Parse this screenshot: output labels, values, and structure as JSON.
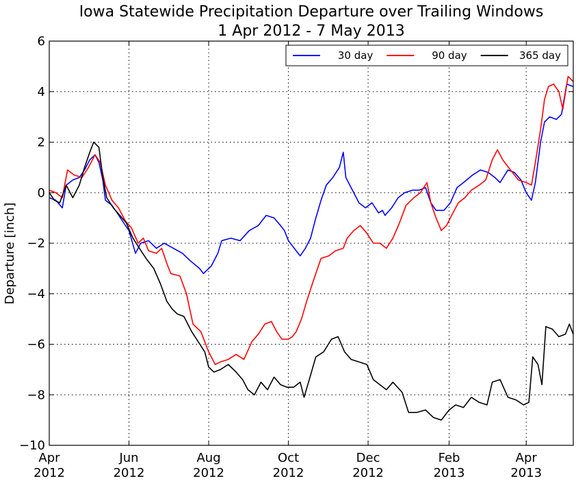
{
  "chart_data": {
    "type": "line",
    "title": "Iowa Statewide Precipitation Departure over Trailing Windows",
    "subtitle": "1 Apr 2012 - 7 May 2013",
    "xlabel": "",
    "ylabel": "Departure [inch]",
    "xlim": [
      "2012-04-01",
      "2013-05-07"
    ],
    "ylim": [
      -10,
      6
    ],
    "yticks": [
      6,
      4,
      2,
      0,
      -2,
      -4,
      -6,
      -8,
      -10
    ],
    "ytick_labels": [
      "6",
      "4",
      "2",
      "0",
      "−2",
      "−4",
      "−6",
      "−8",
      "−10"
    ],
    "xticks": [
      {
        "date": "2012-04-01",
        "line1": "Apr",
        "line2": "2012"
      },
      {
        "date": "2012-06-01",
        "line1": "Jun",
        "line2": "2012"
      },
      {
        "date": "2012-08-01",
        "line1": "Aug",
        "line2": "2012"
      },
      {
        "date": "2012-10-01",
        "line1": "Oct",
        "line2": "2012"
      },
      {
        "date": "2012-12-01",
        "line1": "Dec",
        "line2": "2012"
      },
      {
        "date": "2013-02-01",
        "line1": "Feb",
        "line2": "2013"
      },
      {
        "date": "2013-04-01",
        "line1": "Apr",
        "line2": "2013"
      }
    ],
    "grid": true,
    "legend_position": "top-right",
    "series": [
      {
        "name": "30 day",
        "color": "#0000ff",
        "points": [
          [
            "2012-04-01",
            -0.2
          ],
          [
            "2012-04-06",
            -0.3
          ],
          [
            "2012-04-11",
            -0.6
          ],
          [
            "2012-04-14",
            0.3
          ],
          [
            "2012-04-19",
            0.5
          ],
          [
            "2012-04-24",
            0.6
          ],
          [
            "2012-04-28",
            0.9
          ],
          [
            "2012-05-02",
            1.3
          ],
          [
            "2012-05-06",
            1.5
          ],
          [
            "2012-05-09",
            1.2
          ],
          [
            "2012-05-12",
            0.5
          ],
          [
            "2012-05-14",
            -0.3
          ],
          [
            "2012-05-19",
            -0.5
          ],
          [
            "2012-05-23",
            -0.8
          ],
          [
            "2012-05-28",
            -1.2
          ],
          [
            "2012-06-01",
            -1.5
          ],
          [
            "2012-06-06",
            -2.4
          ],
          [
            "2012-06-10",
            -2.0
          ],
          [
            "2012-06-16",
            -1.9
          ],
          [
            "2012-06-22",
            -2.2
          ],
          [
            "2012-06-28",
            -2.0
          ],
          [
            "2012-07-05",
            -2.2
          ],
          [
            "2012-07-12",
            -2.4
          ],
          [
            "2012-07-18",
            -2.7
          ],
          [
            "2012-07-25",
            -3.0
          ],
          [
            "2012-07-28",
            -3.2
          ],
          [
            "2012-08-03",
            -2.9
          ],
          [
            "2012-08-08",
            -2.4
          ],
          [
            "2012-08-11",
            -1.9
          ],
          [
            "2012-08-18",
            -1.8
          ],
          [
            "2012-08-25",
            -1.9
          ],
          [
            "2012-09-01",
            -1.5
          ],
          [
            "2012-09-08",
            -1.3
          ],
          [
            "2012-09-14",
            -0.9
          ],
          [
            "2012-09-20",
            -1.0
          ],
          [
            "2012-09-25",
            -1.3
          ],
          [
            "2012-09-28",
            -1.5
          ],
          [
            "2012-10-01",
            -1.9
          ],
          [
            "2012-10-07",
            -2.3
          ],
          [
            "2012-10-10",
            -2.5
          ],
          [
            "2012-10-14",
            -2.2
          ],
          [
            "2012-10-18",
            -1.8
          ],
          [
            "2012-10-22",
            -1.0
          ],
          [
            "2012-10-26",
            -0.3
          ],
          [
            "2012-10-30",
            0.3
          ],
          [
            "2012-11-04",
            0.6
          ],
          [
            "2012-11-09",
            1.0
          ],
          [
            "2012-11-12",
            1.6
          ],
          [
            "2012-11-14",
            0.6
          ],
          [
            "2012-11-19",
            0.1
          ],
          [
            "2012-11-24",
            -0.4
          ],
          [
            "2012-11-29",
            -0.6
          ],
          [
            "2012-12-04",
            -0.4
          ],
          [
            "2012-12-09",
            -0.8
          ],
          [
            "2012-12-12",
            -0.7
          ],
          [
            "2012-12-14",
            -0.9
          ],
          [
            "2012-12-19",
            -0.6
          ],
          [
            "2012-12-24",
            -0.2
          ],
          [
            "2012-12-29",
            0.0
          ],
          [
            "2013-01-04",
            0.1
          ],
          [
            "2013-01-09",
            0.1
          ],
          [
            "2013-01-14",
            0.2
          ],
          [
            "2013-01-18",
            -0.4
          ],
          [
            "2013-01-22",
            -0.7
          ],
          [
            "2013-01-28",
            -0.7
          ],
          [
            "2013-02-02",
            -0.4
          ],
          [
            "2013-02-07",
            0.2
          ],
          [
            "2013-02-12",
            0.4
          ],
          [
            "2013-02-19",
            0.7
          ],
          [
            "2013-02-25",
            0.9
          ],
          [
            "2013-03-03",
            0.8
          ],
          [
            "2013-03-08",
            0.6
          ],
          [
            "2013-03-12",
            0.4
          ],
          [
            "2013-03-18",
            0.9
          ],
          [
            "2013-03-23",
            0.8
          ],
          [
            "2013-03-28",
            0.5
          ],
          [
            "2013-04-01",
            0.0
          ],
          [
            "2013-04-05",
            -0.3
          ],
          [
            "2013-04-08",
            0.4
          ],
          [
            "2013-04-12",
            2.0
          ],
          [
            "2013-04-15",
            2.8
          ],
          [
            "2013-04-19",
            3.0
          ],
          [
            "2013-04-24",
            2.9
          ],
          [
            "2013-04-28",
            3.1
          ],
          [
            "2013-05-02",
            4.3
          ],
          [
            "2013-05-07",
            4.2
          ]
        ]
      },
      {
        "name": "90 day",
        "color": "#ff0000",
        "points": [
          [
            "2012-04-01",
            0.1
          ],
          [
            "2012-04-06",
            0.0
          ],
          [
            "2012-04-11",
            -0.2
          ],
          [
            "2012-04-15",
            0.9
          ],
          [
            "2012-04-20",
            0.7
          ],
          [
            "2012-04-26",
            0.6
          ],
          [
            "2012-05-01",
            1.0
          ],
          [
            "2012-05-06",
            1.5
          ],
          [
            "2012-05-10",
            1.2
          ],
          [
            "2012-05-14",
            0.3
          ],
          [
            "2012-05-19",
            -0.3
          ],
          [
            "2012-05-24",
            -0.6
          ],
          [
            "2012-05-29",
            -1.1
          ],
          [
            "2012-06-03",
            -1.4
          ],
          [
            "2012-06-08",
            -2.0
          ],
          [
            "2012-06-12",
            -1.8
          ],
          [
            "2012-06-16",
            -2.3
          ],
          [
            "2012-06-22",
            -2.4
          ],
          [
            "2012-06-26",
            -2.2
          ],
          [
            "2012-06-30",
            -2.8
          ],
          [
            "2012-07-03",
            -3.2
          ],
          [
            "2012-07-10",
            -3.3
          ],
          [
            "2012-07-15",
            -4.0
          ],
          [
            "2012-07-20",
            -5.2
          ],
          [
            "2012-07-26",
            -5.5
          ],
          [
            "2012-08-01",
            -6.3
          ],
          [
            "2012-08-06",
            -6.8
          ],
          [
            "2012-08-10",
            -6.7
          ],
          [
            "2012-08-16",
            -6.6
          ],
          [
            "2012-08-22",
            -6.4
          ],
          [
            "2012-08-28",
            -6.6
          ],
          [
            "2012-09-03",
            -5.9
          ],
          [
            "2012-09-08",
            -5.6
          ],
          [
            "2012-09-13",
            -5.2
          ],
          [
            "2012-09-18",
            -5.1
          ],
          [
            "2012-09-22",
            -5.5
          ],
          [
            "2012-09-26",
            -5.8
          ],
          [
            "2012-10-01",
            -5.8
          ],
          [
            "2012-10-04",
            -5.7
          ],
          [
            "2012-10-07",
            -5.5
          ],
          [
            "2012-10-11",
            -5.0
          ],
          [
            "2012-10-15",
            -4.3
          ],
          [
            "2012-10-20",
            -3.5
          ],
          [
            "2012-10-26",
            -2.6
          ],
          [
            "2012-11-01",
            -2.5
          ],
          [
            "2012-11-06",
            -2.3
          ],
          [
            "2012-11-12",
            -2.2
          ],
          [
            "2012-11-15",
            -1.8
          ],
          [
            "2012-11-20",
            -1.5
          ],
          [
            "2012-11-25",
            -1.3
          ],
          [
            "2012-11-30",
            -1.6
          ],
          [
            "2012-12-05",
            -2.0
          ],
          [
            "2012-12-10",
            -2.0
          ],
          [
            "2012-12-15",
            -2.2
          ],
          [
            "2012-12-20",
            -1.8
          ],
          [
            "2012-12-25",
            -1.2
          ],
          [
            "2012-12-30",
            -0.5
          ],
          [
            "2013-01-05",
            -0.2
          ],
          [
            "2013-01-10",
            0.0
          ],
          [
            "2013-01-15",
            0.4
          ],
          [
            "2013-01-18",
            -0.4
          ],
          [
            "2013-01-22",
            -1.0
          ],
          [
            "2013-01-26",
            -1.5
          ],
          [
            "2013-01-30",
            -1.3
          ],
          [
            "2013-02-03",
            -0.9
          ],
          [
            "2013-02-08",
            -0.4
          ],
          [
            "2013-02-13",
            -0.2
          ],
          [
            "2013-02-18",
            0.1
          ],
          [
            "2013-02-24",
            0.3
          ],
          [
            "2013-03-01",
            0.5
          ],
          [
            "2013-03-06",
            1.3
          ],
          [
            "2013-03-10",
            1.7
          ],
          [
            "2013-03-14",
            1.3
          ],
          [
            "2013-03-20",
            0.9
          ],
          [
            "2013-03-26",
            0.5
          ],
          [
            "2013-04-01",
            0.4
          ],
          [
            "2013-04-05",
            0.3
          ],
          [
            "2013-04-08",
            1.2
          ],
          [
            "2013-04-12",
            2.5
          ],
          [
            "2013-04-15",
            3.7
          ],
          [
            "2013-04-18",
            4.2
          ],
          [
            "2013-04-22",
            4.3
          ],
          [
            "2013-04-26",
            4.0
          ],
          [
            "2013-04-29",
            3.3
          ],
          [
            "2013-05-03",
            4.6
          ],
          [
            "2013-05-07",
            4.4
          ]
        ]
      },
      {
        "name": "365 day",
        "color": "#000000",
        "points": [
          [
            "2012-04-01",
            0.0
          ],
          [
            "2012-04-05",
            -0.3
          ],
          [
            "2012-04-09",
            -0.4
          ],
          [
            "2012-04-14",
            0.3
          ],
          [
            "2012-04-19",
            -0.2
          ],
          [
            "2012-04-24",
            0.3
          ],
          [
            "2012-04-28",
            1.0
          ],
          [
            "2012-05-02",
            1.6
          ],
          [
            "2012-05-05",
            2.0
          ],
          [
            "2012-05-09",
            1.8
          ],
          [
            "2012-05-12",
            0.6
          ],
          [
            "2012-05-15",
            -0.2
          ],
          [
            "2012-05-20",
            -0.6
          ],
          [
            "2012-05-25",
            -0.9
          ],
          [
            "2012-05-30",
            -1.2
          ],
          [
            "2012-06-04",
            -1.8
          ],
          [
            "2012-06-09",
            -2.2
          ],
          [
            "2012-06-14",
            -2.6
          ],
          [
            "2012-06-20",
            -3.0
          ],
          [
            "2012-06-25",
            -3.6
          ],
          [
            "2012-06-30",
            -4.3
          ],
          [
            "2012-07-04",
            -4.6
          ],
          [
            "2012-07-08",
            -4.8
          ],
          [
            "2012-07-13",
            -4.9
          ],
          [
            "2012-07-19",
            -5.5
          ],
          [
            "2012-07-24",
            -5.9
          ],
          [
            "2012-07-29",
            -6.3
          ],
          [
            "2012-08-01",
            -6.9
          ],
          [
            "2012-08-05",
            -7.1
          ],
          [
            "2012-08-10",
            -7.0
          ],
          [
            "2012-08-16",
            -6.8
          ],
          [
            "2012-08-22",
            -7.1
          ],
          [
            "2012-08-27",
            -7.4
          ],
          [
            "2012-08-31",
            -7.8
          ],
          [
            "2012-09-05",
            -8.0
          ],
          [
            "2012-09-10",
            -7.5
          ],
          [
            "2012-09-15",
            -7.8
          ],
          [
            "2012-09-20",
            -7.3
          ],
          [
            "2012-09-25",
            -7.6
          ],
          [
            "2012-09-30",
            -7.7
          ],
          [
            "2012-10-05",
            -7.7
          ],
          [
            "2012-10-10",
            -7.5
          ],
          [
            "2012-10-13",
            -8.1
          ],
          [
            "2012-10-17",
            -7.4
          ],
          [
            "2012-10-22",
            -6.5
          ],
          [
            "2012-10-28",
            -6.3
          ],
          [
            "2012-11-03",
            -5.8
          ],
          [
            "2012-11-08",
            -5.7
          ],
          [
            "2012-11-13",
            -6.3
          ],
          [
            "2012-11-18",
            -6.6
          ],
          [
            "2012-11-24",
            -6.7
          ],
          [
            "2012-11-30",
            -6.8
          ],
          [
            "2012-12-05",
            -7.4
          ],
          [
            "2012-12-10",
            -7.6
          ],
          [
            "2012-12-15",
            -7.8
          ],
          [
            "2012-12-20",
            -7.5
          ],
          [
            "2012-12-27",
            -7.9
          ],
          [
            "2013-01-01",
            -8.7
          ],
          [
            "2013-01-07",
            -8.7
          ],
          [
            "2013-01-14",
            -8.6
          ],
          [
            "2013-01-20",
            -8.9
          ],
          [
            "2013-01-26",
            -9.0
          ],
          [
            "2013-02-01",
            -8.6
          ],
          [
            "2013-02-06",
            -8.4
          ],
          [
            "2013-02-12",
            -8.5
          ],
          [
            "2013-02-18",
            -8.1
          ],
          [
            "2013-02-24",
            -8.3
          ],
          [
            "2013-03-02",
            -8.4
          ],
          [
            "2013-03-06",
            -7.5
          ],
          [
            "2013-03-12",
            -7.4
          ],
          [
            "2013-03-18",
            -8.1
          ],
          [
            "2013-03-24",
            -8.2
          ],
          [
            "2013-03-30",
            -8.4
          ],
          [
            "2013-04-03",
            -8.3
          ],
          [
            "2013-04-06",
            -6.5
          ],
          [
            "2013-04-10",
            -6.8
          ],
          [
            "2013-04-13",
            -7.6
          ],
          [
            "2013-04-16",
            -5.3
          ],
          [
            "2013-04-21",
            -5.4
          ],
          [
            "2013-04-26",
            -5.7
          ],
          [
            "2013-05-01",
            -5.6
          ],
          [
            "2013-05-04",
            -5.2
          ],
          [
            "2013-05-07",
            -5.6
          ]
        ]
      }
    ]
  }
}
